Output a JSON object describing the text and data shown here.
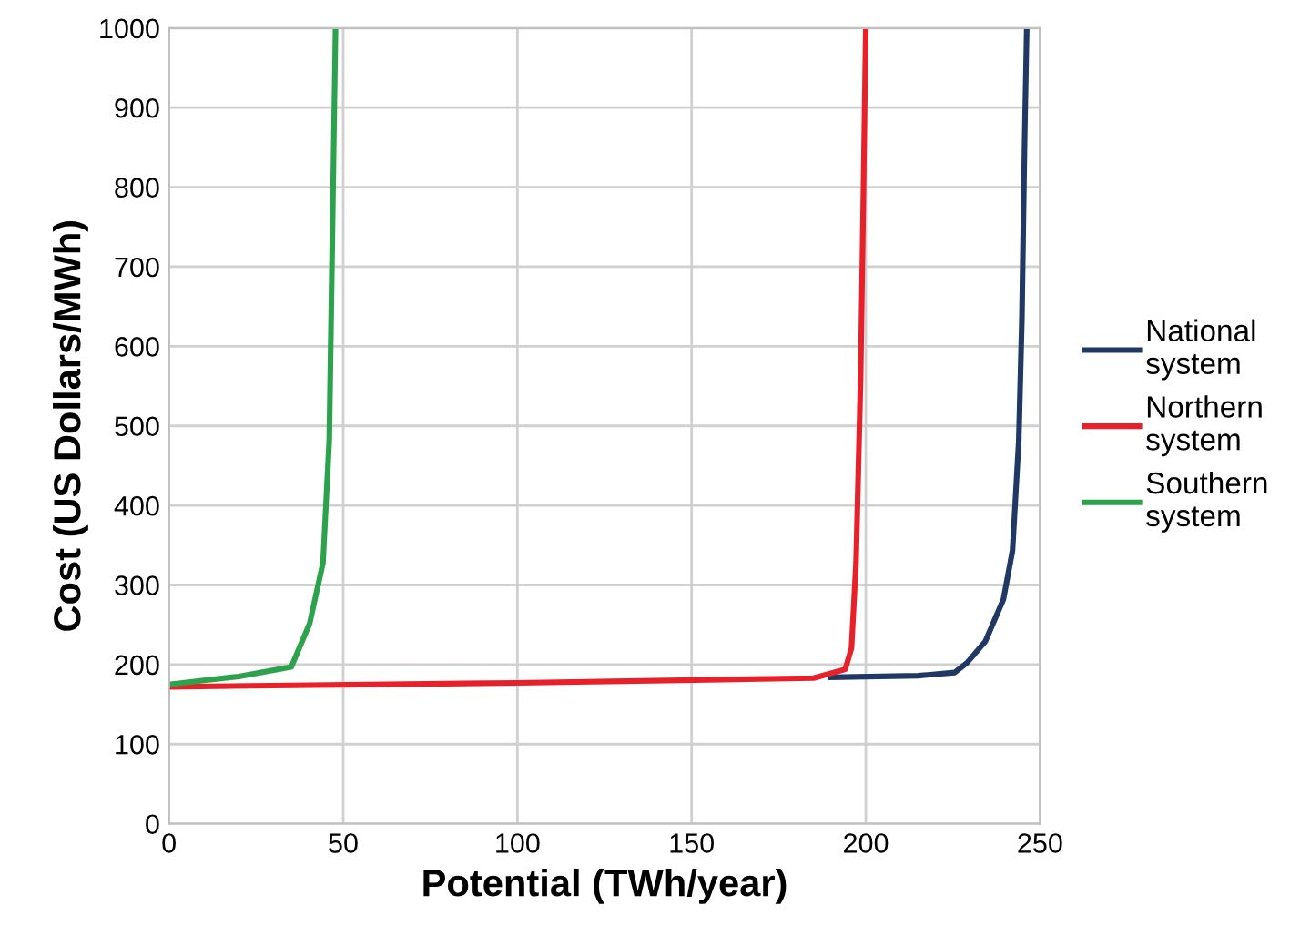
{
  "chart_data": {
    "type": "line",
    "xlabel": "Potential (TWh/year)",
    "ylabel": "Cost (US Dollars/MWh)",
    "xlim": [
      0,
      250
    ],
    "ylim": [
      0,
      1000
    ],
    "xticks": [
      0,
      50,
      100,
      150,
      200,
      250
    ],
    "yticks": [
      0,
      100,
      200,
      300,
      400,
      500,
      600,
      700,
      800,
      900,
      1000
    ],
    "grid": true,
    "legend": "right",
    "marker": "none",
    "line_style": "solid",
    "series": [
      {
        "name": "National system",
        "color": "#1f3864",
        "x": [
          190,
          215,
          225.5,
          229,
          234.3,
          239.5,
          242.1,
          243.9,
          244.8,
          245.6,
          246.2
        ],
        "values": [
          184,
          186,
          190,
          202,
          229,
          282,
          343,
          481,
          634,
          863,
          1000
        ]
      },
      {
        "name": "Northern system",
        "color": "#e8202a",
        "x": [
          0,
          100,
          185,
          194.1,
          195.9,
          197.2,
          198.5,
          199.3,
          200
        ],
        "values": [
          172,
          177,
          183,
          194,
          221,
          328,
          557,
          787,
          1000
        ]
      },
      {
        "name": "Southern system",
        "color": "#2ca24c",
        "x": [
          0,
          20,
          35.1,
          40.4,
          44.2,
          46,
          46.8,
          47.8
        ],
        "values": [
          175,
          185,
          197,
          252,
          328,
          482,
          711,
          1000
        ]
      }
    ]
  }
}
